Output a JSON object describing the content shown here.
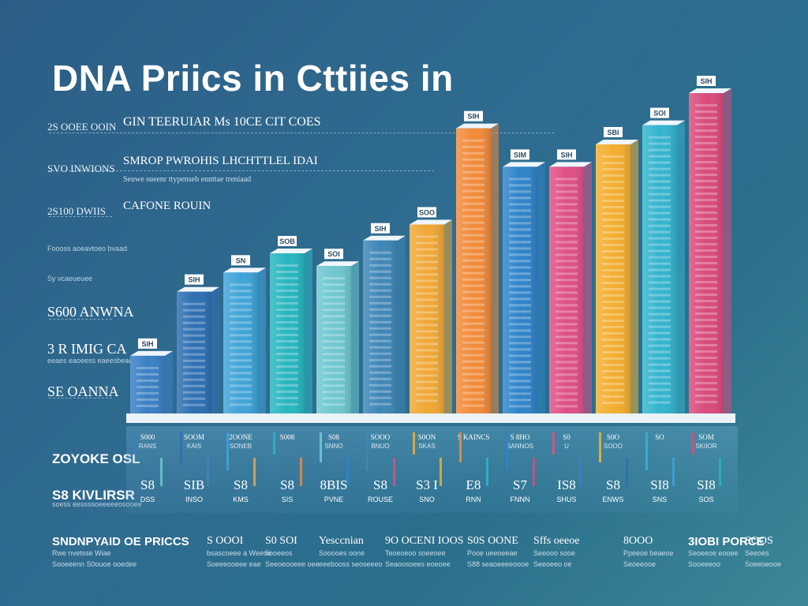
{
  "title": "DNA Priics in Cttiies in",
  "legend": {
    "line1": "GIN TEERUIAR Ms 10CE CIT COES",
    "line2": "SMROP PWROHIS LHCHTTLEL IDAI",
    "line2_sub": "Seuwe sueenr ttypenseb ennttae treniaad",
    "line3": "CAFONE ROUIN"
  },
  "left_axis": {
    "labels": [
      "2S OOEE OOIN",
      "SVO INWIONS",
      "2S100 DWIIS",
      "Foooss aoeavtoeo bvaad",
      "Sy vcaeueuee",
      "S600 ANWNA",
      "3 R IMIG CA",
      "SE OANNA"
    ],
    "small_note": "eeaes eaoeess eaeesbeae"
  },
  "bottom_left": {
    "label1": "ZOYOKE OSL",
    "label2": "S8 KIVLIRSR",
    "label2_sub": "soess eessssoeeeeeosooee"
  },
  "chart_data": {
    "type": "bar",
    "title": "DNA Priics in Cttiies in",
    "ylabel": "",
    "xlabel": "",
    "ylim": [
      0,
      100
    ],
    "categories": [
      "SIH",
      "SIH",
      "SN",
      "SOB",
      "SOI",
      "SIH",
      "SOO",
      "SIH",
      "SIM",
      "SIH",
      "SBI",
      "SOI",
      "SIH"
    ],
    "bar_labels": [
      "SIH",
      "SIH",
      "SN",
      "SOB",
      "SOI",
      "SIH",
      "SOO",
      "SIH",
      "SIM",
      "SIH",
      "SBI",
      "SOI",
      "SIH"
    ],
    "values": [
      18,
      38,
      44,
      50,
      46,
      54,
      59,
      89,
      77,
      77,
      84,
      90,
      100
    ],
    "colors": [
      "#3a7fc5",
      "#2d6fb2",
      "#3fa3d8",
      "#27b6c0",
      "#6ec7d0",
      "#3e86b7",
      "#f0a736",
      "#f28a3a",
      "#2f83c9",
      "#de4f86",
      "#f3ae2e",
      "#33b4cf",
      "#d94a7d"
    ],
    "city_labels": [
      "S000",
      "SOOM",
      "2OONE",
      "S008",
      "S08",
      "SOOO",
      "S0ON",
      "S KAINCS",
      "S 8HO",
      "S0",
      "S0O",
      "SO",
      "SOM"
    ],
    "city_sub": [
      "RANS",
      "KAIS",
      "SONEB",
      "",
      "SNNO",
      "BNUO",
      "SKAS",
      "",
      "SANNOS",
      "U",
      "SOOO",
      "",
      "SKIIOR"
    ],
    "bottom_values": [
      "S8",
      "SIB",
      "S8",
      "S8",
      "8BIS",
      "S8",
      "S3 I",
      "E8",
      "S7",
      "IS8",
      "S8",
      "SI8",
      "SI8"
    ],
    "bottom_sub": [
      "DSS",
      "INSO",
      "KMS",
      "SIS",
      "PVNE",
      "ROUSE",
      "SNO",
      "RNN",
      "FNNN",
      "SHUS",
      "ENWS",
      "SNS",
      "SOS"
    ]
  },
  "footer": {
    "items": [
      {
        "head": "SNDNPYAID OE PRICCS",
        "sub": "Rwe nvetsse Wiae",
        "sub2": "Sooeeenn S0ouoe ooedee"
      },
      {
        "head": "S OOOI",
        "sub": "bsascoeee a Weeoe",
        "sub2": "Soeeeooeee eae"
      },
      {
        "head": "S0 SOI",
        "sub": "5ooeeos",
        "sub2": "Seeoeooeee oee"
      },
      {
        "head": "Yesccnian",
        "sub": "Sooooes oone",
        "sub2": "eeebooss seoseeeo"
      },
      {
        "head": "9O OCENI IOOS",
        "sub": "Teoeoeoo soeeoee",
        "sub2": "Seaoosoees eoeoee"
      },
      {
        "head": "S0S OONE",
        "sub": "Pooe ueeoeeae",
        "sub2": "S88 seaoeeeeoooe"
      },
      {
        "head": "Sffs oeeoe",
        "sub": "Seeooo sooe",
        "sub2": "Seeoeeo oe"
      },
      {
        "head": "8OOO",
        "sub": "Ppeeoe beaeoe",
        "sub2": "Seoeeooe"
      },
      {
        "head": "3IOBI PORCE",
        "sub": "Seoeeoe eooee",
        "sub2": "Sooeeeoo"
      },
      {
        "head": "SOOS",
        "sub": "Seeoes",
        "sub2": "Soeeoeooe"
      }
    ]
  }
}
